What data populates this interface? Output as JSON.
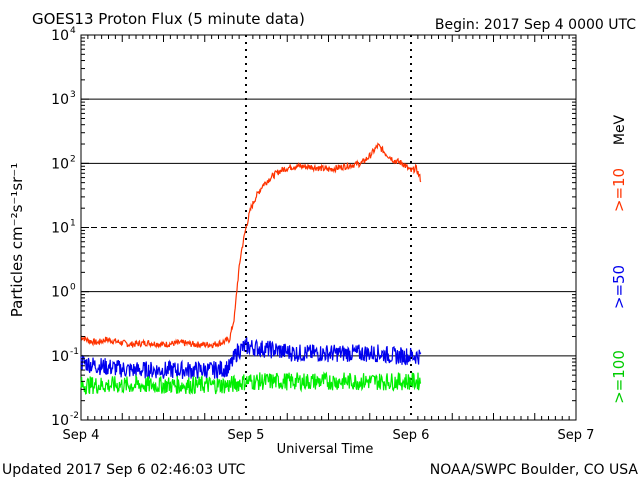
{
  "header": {
    "title": "GOES13 Proton Flux (5 minute data)",
    "begin": "Begin: 2017 Sep 4 0000 UTC"
  },
  "footer": {
    "updated": "Updated 2017 Sep  6 02:46:03 UTC",
    "credit": "NOAA/SWPC Boulder, CO USA"
  },
  "legend": {
    "unit": "MeV",
    "ge10": ">=10",
    "ge50": ">=50",
    "ge100": ">=100"
  },
  "colors": {
    "ge10": "#ff3300",
    "ge50": "#0000ee",
    "ge100": "#00ee00"
  },
  "chart_data": {
    "type": "line",
    "title": "GOES13 Proton Flux (5 minute data)",
    "xlabel": "Universal Time",
    "ylabel": "Particles cm⁻²s⁻¹sr⁻¹",
    "x_unit": "days since 2017 Sep 4 0000 UTC",
    "xlim": [
      0,
      3
    ],
    "ylim": [
      0.01,
      10000
    ],
    "yscale": "log",
    "x_ticks": [
      {
        "x": 0,
        "label": "Sep 4"
      },
      {
        "x": 1,
        "label": "Sep 5"
      },
      {
        "x": 2,
        "label": "Sep 6"
      },
      {
        "x": 3,
        "label": "Sep 7"
      }
    ],
    "y_ticks": [
      {
        "exp": -2,
        "label_base": "10",
        "label_exp": "-2"
      },
      {
        "exp": -1,
        "label_base": "10",
        "label_exp": "-1"
      },
      {
        "exp": 0,
        "label_base": "10",
        "label_exp": "0"
      },
      {
        "exp": 1,
        "label_base": "10",
        "label_exp": "1"
      },
      {
        "exp": 2,
        "label_base": "10",
        "label_exp": "2"
      },
      {
        "exp": 3,
        "label_base": "10",
        "label_exp": "3"
      },
      {
        "exp": 4,
        "label_base": "10",
        "label_exp": "4"
      }
    ],
    "thresholds": [
      10
    ],
    "series": [
      {
        "name": ">=10 MeV",
        "color": "#ff3300",
        "x": [
          0,
          0.05,
          0.1,
          0.15,
          0.2,
          0.3,
          0.4,
          0.5,
          0.6,
          0.7,
          0.8,
          0.85,
          0.9,
          0.93,
          0.95,
          0.97,
          1.0,
          1.03,
          1.06,
          1.1,
          1.15,
          1.2,
          1.25,
          1.3,
          1.4,
          1.5,
          1.6,
          1.7,
          1.75,
          1.8,
          1.85,
          1.9,
          1.95,
          2.0,
          2.03,
          2.06
        ],
        "y": [
          0.2,
          0.17,
          0.16,
          0.18,
          0.17,
          0.15,
          0.16,
          0.15,
          0.16,
          0.15,
          0.15,
          0.16,
          0.18,
          0.4,
          1.5,
          4,
          10,
          20,
          30,
          45,
          60,
          75,
          85,
          90,
          88,
          80,
          90,
          100,
          130,
          190,
          140,
          110,
          100,
          75,
          85,
          55
        ]
      },
      {
        "name": ">=50 MeV",
        "color": "#0000ee",
        "x": [
          0,
          0.1,
          0.2,
          0.3,
          0.4,
          0.5,
          0.6,
          0.7,
          0.8,
          0.9,
          0.95,
          1.0,
          1.1,
          1.2,
          1.3,
          1.4,
          1.5,
          1.6,
          1.7,
          1.8,
          1.9,
          2.0,
          2.06
        ],
        "y": [
          0.08,
          0.07,
          0.065,
          0.06,
          0.06,
          0.06,
          0.06,
          0.06,
          0.06,
          0.065,
          0.12,
          0.14,
          0.13,
          0.12,
          0.11,
          0.11,
          0.11,
          0.11,
          0.11,
          0.11,
          0.1,
          0.1,
          0.1
        ]
      },
      {
        "name": ">=100 MeV",
        "color": "#00ee00",
        "x": [
          0,
          0.1,
          0.2,
          0.3,
          0.4,
          0.5,
          0.6,
          0.7,
          0.8,
          0.9,
          1.0,
          1.1,
          1.2,
          1.3,
          1.4,
          1.5,
          1.6,
          1.7,
          1.8,
          1.9,
          2.0,
          2.06
        ],
        "y": [
          0.035,
          0.035,
          0.035,
          0.035,
          0.035,
          0.035,
          0.035,
          0.035,
          0.035,
          0.035,
          0.04,
          0.04,
          0.04,
          0.04,
          0.04,
          0.04,
          0.04,
          0.04,
          0.04,
          0.04,
          0.04,
          0.04
        ]
      }
    ]
  }
}
